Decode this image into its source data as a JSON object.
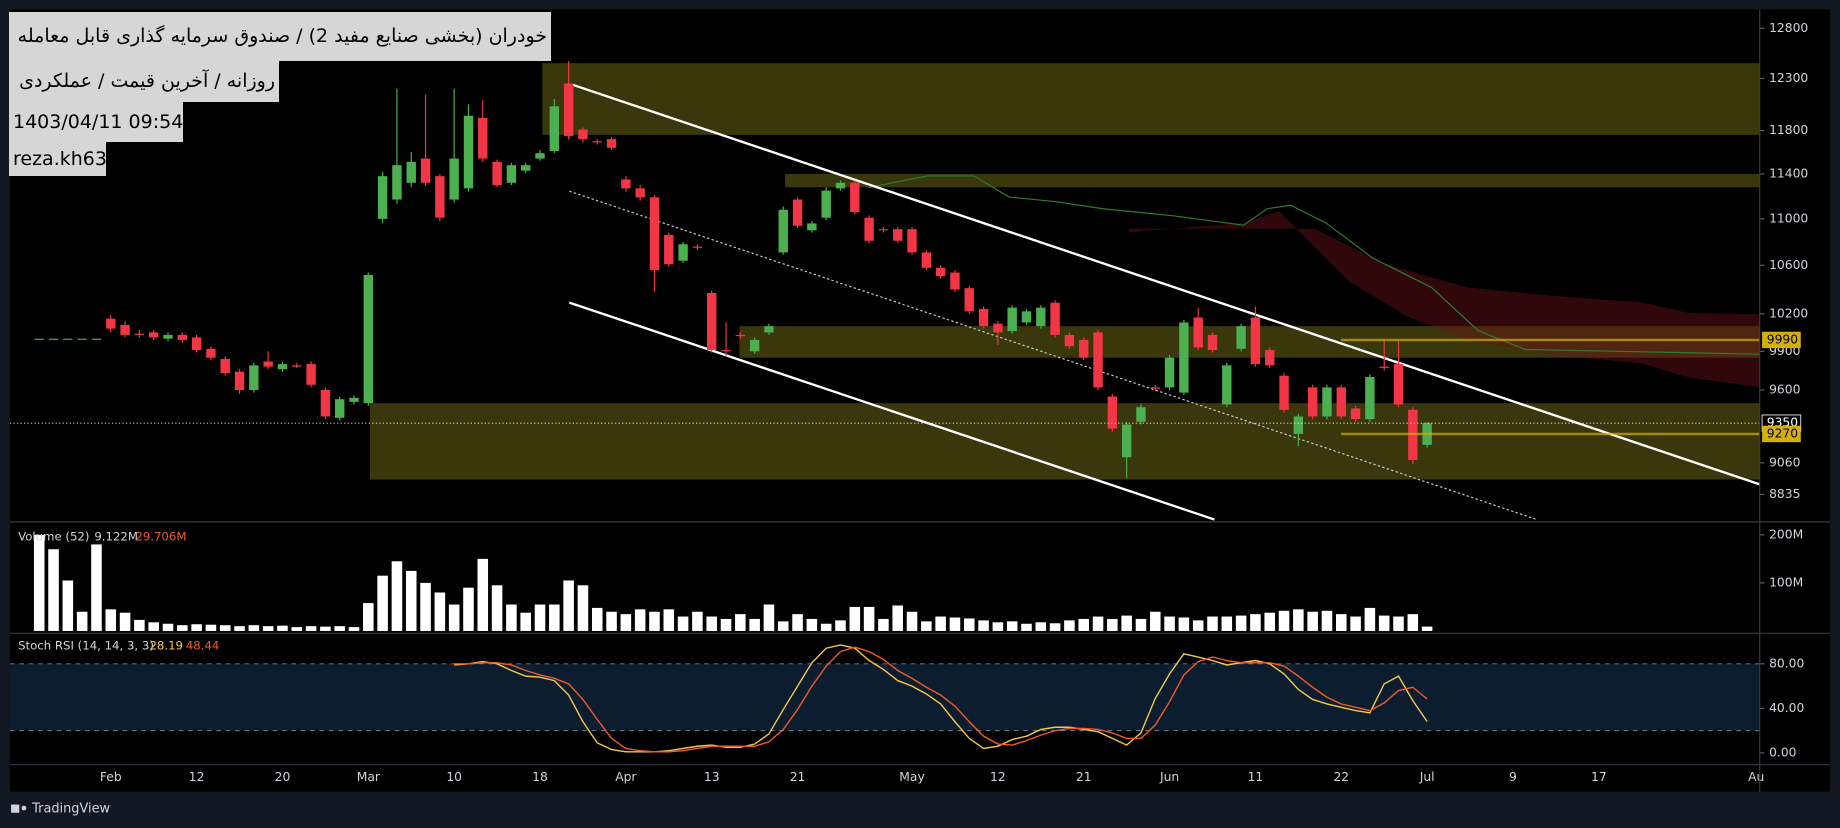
{
  "title": "خودران (بخشی صنایع مفید 2) / صندوق سرمایه گذاری قابل معامله",
  "subtitle": "روزانه / آخرین قیمت / عملکردی",
  "timestamp": "1403/04/11 09:54",
  "author": "reza.kh63",
  "brand": "TradingView",
  "chart_data": [
    {
      "type": "candlestick",
      "categories": [
        null,
        null,
        null,
        null,
        null,
        null,
        null,
        "Feb",
        null,
        null,
        null,
        null,
        null,
        "12",
        null,
        null,
        null,
        null,
        null,
        "20",
        null,
        null,
        null,
        null,
        null,
        "Mar",
        null,
        null,
        null,
        null,
        null,
        "10",
        null,
        null,
        null,
        null,
        null,
        "18",
        null,
        null,
        null,
        null,
        null,
        "Apr",
        null,
        null,
        null,
        null,
        null,
        "13",
        null,
        null,
        null,
        null,
        null,
        "21",
        null,
        null,
        null,
        null,
        null,
        null,
        null,
        "May",
        null,
        null,
        null,
        null,
        null,
        "12",
        null,
        null,
        null,
        null,
        null,
        "21",
        null,
        null,
        null,
        null,
        null,
        "Jun",
        null,
        null,
        null,
        null,
        null,
        "11",
        null,
        null,
        null,
        null,
        null,
        "22",
        null,
        null,
        null,
        null,
        null,
        "Jul",
        null,
        null,
        null,
        null,
        null,
        "9",
        null,
        null,
        null,
        null,
        null,
        "17",
        null,
        null,
        null,
        null,
        null,
        null,
        null,
        null,
        null,
        null,
        "Au"
      ],
      "open": [
        null,
        null,
        10000,
        10000,
        10000,
        10000,
        10000,
        10160,
        10110,
        10040,
        10050,
        10000,
        10030,
        10010,
        9920,
        9840,
        9740,
        9600,
        9820,
        9760,
        9790,
        9800,
        9600,
        9390,
        9510,
        9500,
        11000,
        11170,
        11320,
        11540,
        11380,
        11170,
        11270,
        11920,
        11510,
        11320,
        11430,
        11540,
        11610,
        12250,
        11810,
        11700,
        11720,
        11350,
        11270,
        11190,
        10860,
        10640,
        10760,
        10370,
        9910,
        10030,
        9900,
        10050,
        10710,
        11170,
        10900,
        11010,
        11270,
        11320,
        11010,
        10910,
        10910,
        10910,
        10710,
        10580,
        10540,
        10410,
        10240,
        10120,
        10060,
        10130,
        10100,
        10290,
        10030,
        9990,
        10050,
        9550,
        9100,
        9360,
        9620,
        9620,
        9580,
        10170,
        10030,
        9490,
        9920,
        10170,
        9910,
        9710,
        9270,
        9620,
        9400,
        9620,
        9460,
        9380,
        9780,
        9800,
        9450,
        9190,
        null,
        null,
        null,
        null,
        null,
        null,
        null,
        null,
        null,
        null,
        null,
        null,
        null,
        null,
        null,
        null,
        null,
        null,
        null,
        null,
        null,
        null,
        null
      ],
      "high": [
        null,
        null,
        10000,
        10000,
        10000,
        10000,
        10000,
        10190,
        10140,
        10070,
        10070,
        10050,
        10050,
        10030,
        9940,
        9860,
        9760,
        9810,
        9900,
        9820,
        9810,
        9820,
        9620,
        9550,
        9560,
        10540,
        11420,
        12200,
        11600,
        12140,
        11400,
        12200,
        12050,
        12090,
        11530,
        11500,
        11500,
        11620,
        12100,
        12470,
        11830,
        11720,
        11740,
        11380,
        11300,
        11210,
        10880,
        10800,
        10780,
        10390,
        10130,
        10050,
        10010,
        10120,
        11110,
        11190,
        10980,
        11280,
        11340,
        11340,
        11030,
        10930,
        10930,
        10930,
        10730,
        10600,
        10560,
        10430,
        10260,
        10140,
        10270,
        10240,
        10270,
        10310,
        10050,
        10010,
        10070,
        9570,
        9360,
        9490,
        9640,
        9870,
        10150,
        10250,
        10050,
        9810,
        10120,
        10260,
        9930,
        9730,
        9420,
        9640,
        9640,
        9640,
        9480,
        9720,
        9990,
        9980,
        9470,
        9360,
        null,
        null,
        null,
        null,
        null,
        null,
        null,
        null,
        null,
        null,
        null,
        null,
        null,
        null,
        null,
        null,
        null,
        null,
        null,
        null,
        null,
        null,
        null
      ],
      "low": [
        null,
        null,
        10000,
        10000,
        10000,
        10000,
        10000,
        10050,
        10010,
        10010,
        9990,
        9980,
        9970,
        9890,
        9830,
        9710,
        9570,
        9580,
        9760,
        9740,
        9770,
        9620,
        9380,
        9370,
        9490,
        9480,
        10960,
        11130,
        11280,
        11290,
        10980,
        11140,
        11240,
        11510,
        11280,
        11300,
        11410,
        11520,
        11590,
        11720,
        11690,
        11670,
        11620,
        11240,
        11160,
        10380,
        10590,
        10620,
        10730,
        9890,
        9860,
        10000,
        9880,
        10030,
        10690,
        10920,
        10880,
        10990,
        11250,
        11040,
        10790,
        10880,
        10790,
        10690,
        10560,
        10490,
        10380,
        10200,
        10080,
        9950,
        10040,
        10110,
        10080,
        10010,
        9920,
        9830,
        9600,
        9290,
        8950,
        9340,
        9590,
        9600,
        9560,
        9910,
        9890,
        9470,
        9900,
        9780,
        9770,
        9430,
        9180,
        9380,
        9380,
        9380,
        9360,
        9360,
        9750,
        9470,
        9050,
        9170,
        null,
        null,
        null,
        null,
        null,
        null,
        null,
        null,
        null,
        null,
        null,
        null,
        null,
        null,
        null,
        null,
        null,
        null,
        null,
        null,
        null,
        null,
        null
      ],
      "close": [
        null,
        null,
        10000,
        10000,
        10000,
        10000,
        10000,
        10080,
        10030,
        10030,
        10010,
        10030,
        9990,
        9910,
        9850,
        9730,
        9600,
        9790,
        9780,
        9800,
        9780,
        9640,
        9400,
        9530,
        9540,
        10520,
        11380,
        11480,
        11510,
        11320,
        11010,
        11540,
        11940,
        11540,
        11300,
        11480,
        11480,
        11590,
        12030,
        11750,
        11720,
        11690,
        11640,
        11270,
        11190,
        10560,
        10610,
        10780,
        10750,
        9910,
        9900,
        10020,
        9990,
        10100,
        11080,
        10940,
        10960,
        11250,
        11320,
        11060,
        10810,
        10900,
        10810,
        10710,
        10580,
        10510,
        10400,
        10220,
        10100,
        10050,
        10250,
        10220,
        10250,
        10030,
        9940,
        9850,
        9620,
        9310,
        9340,
        9470,
        9610,
        9850,
        10130,
        9930,
        9910,
        9790,
        10100,
        9800,
        9790,
        9450,
        9400,
        9400,
        9620,
        9400,
        9380,
        9700,
        9770,
        9490,
        9080,
        9350,
        null,
        null,
        null,
        null,
        null,
        null,
        null,
        null,
        null,
        null,
        null,
        null,
        null,
        null,
        null,
        null,
        null,
        null,
        null,
        null,
        null,
        null,
        null
      ],
      "up_color": "#4caf50",
      "down_color": "#f23645",
      "log_scale": true,
      "ylim": [
        8660,
        12970
      ],
      "yticks": [
        12800,
        12300,
        11800,
        11400,
        11000,
        10600,
        10200,
        9900,
        9600,
        9060,
        8835
      ],
      "zone_color": "#d4c62c",
      "zones": [
        {
          "high": 12450,
          "low": 11760
        },
        {
          "high": 11400,
          "low": 11280
        },
        {
          "high": 10100,
          "low": 9850
        },
        {
          "high": 9500,
          "low": 8940
        }
      ],
      "price_lines": [
        {
          "value": 9990,
          "color": "#d4af0a",
          "style": "solid"
        },
        {
          "value": 9350,
          "color": "#ffffff",
          "style": "dotted"
        },
        {
          "value": 9270,
          "color": "#d4af0a",
          "style": "solid"
        }
      ]
    },
    {
      "type": "bar",
      "title": "Volume (52)",
      "legend_values": [
        "9.122M",
        "29.706M"
      ],
      "color": "#ffffff",
      "values": [
        null,
        null,
        200000000.0,
        170000000.0,
        105000000.0,
        40000000.0,
        180000000.0,
        45000000.0,
        38000000.0,
        23000000.0,
        18000000.0,
        15000000.0,
        12000000.0,
        14000000.0,
        13000000.0,
        12000000.0,
        10000000.0,
        12000000.0,
        10000000.0,
        11000000.0,
        8000000.0,
        10000000.0,
        9000000.0,
        10000000.0,
        8000000.0,
        58000000.0,
        115000000.0,
        145000000.0,
        125000000.0,
        100000000.0,
        80000000.0,
        55000000.0,
        90000000.0,
        150000000.0,
        95000000.0,
        55000000.0,
        38000000.0,
        55000000.0,
        55000000.0,
        105000000.0,
        95000000.0,
        48000000.0,
        40000000.0,
        35000000.0,
        45000000.0,
        40000000.0,
        45000000.0,
        30000000.0,
        40000000.0,
        30000000.0,
        25000000.0,
        35000000.0,
        25000000.0,
        55000000.0,
        20000000.0,
        35000000.0,
        25000000.0,
        15000000.0,
        22000000.0,
        50000000.0,
        50000000.0,
        25000000.0,
        53000000.0,
        40000000.0,
        20000000.0,
        30000000.0,
        28000000.0,
        26000000.0,
        22000000.0,
        18000000.0,
        20000000.0,
        15000000.0,
        18000000.0,
        16000000.0,
        22000000.0,
        25000000.0,
        30000000.0,
        25000000.0,
        32000000.0,
        25000000.0,
        40000000.0,
        30000000.0,
        28000000.0,
        22000000.0,
        30000000.0,
        30000000.0,
        32000000.0,
        35000000.0,
        38000000.0,
        42000000.0,
        45000000.0,
        40000000.0,
        42000000.0,
        35000000.0,
        30000000.0,
        48000000.0,
        32000000.0,
        30000000.0,
        35000000.0,
        9122000,
        null,
        null,
        null,
        null,
        null,
        null,
        null,
        null,
        null,
        null,
        null,
        null,
        null,
        null,
        null,
        null,
        null,
        null,
        null,
        null,
        null,
        null,
        null
      ],
      "ylim": [
        0,
        222000000.0
      ],
      "yticks": [
        {
          "value": 200000000.0,
          "label": "200M"
        },
        {
          "value": 100000000.0,
          "label": "100M"
        }
      ]
    },
    {
      "type": "line",
      "title": "Stoch RSI (14, 14, 3, 3)",
      "band": [
        20,
        80
      ],
      "band_color": "#0b1d2e",
      "series": [
        {
          "color": "#f5c84a",
          "values": [
            null,
            null,
            null,
            null,
            null,
            null,
            null,
            null,
            null,
            null,
            null,
            null,
            null,
            null,
            null,
            null,
            null,
            null,
            null,
            null,
            null,
            null,
            null,
            null,
            null,
            null,
            null,
            null,
            null,
            null,
            null,
            79,
            80,
            82,
            80,
            74,
            69,
            68,
            65,
            52,
            28,
            9,
            3,
            1,
            1,
            1,
            2,
            4,
            6,
            7,
            5,
            5,
            8,
            17,
            39,
            60,
            81,
            94,
            97,
            94,
            83,
            75,
            65,
            60,
            53,
            44,
            28,
            13,
            4,
            6,
            12,
            15,
            21,
            23,
            23,
            21,
            19,
            13,
            7,
            18,
            49,
            71,
            89,
            86,
            83,
            79,
            81,
            83,
            80,
            71,
            57,
            48,
            44,
            41,
            38,
            36,
            62,
            69,
            47,
            28.19,
            null,
            null,
            null,
            null,
            null,
            null,
            null,
            null,
            null,
            null,
            null,
            null,
            null,
            null,
            null,
            null,
            null,
            null,
            null,
            null,
            null,
            null,
            null
          ]
        },
        {
          "color": "#ef5a28",
          "values": [
            null,
            null,
            null,
            null,
            null,
            null,
            null,
            null,
            null,
            null,
            null,
            null,
            null,
            null,
            null,
            null,
            null,
            null,
            null,
            null,
            null,
            null,
            null,
            null,
            null,
            null,
            null,
            null,
            null,
            null,
            null,
            80,
            80,
            81,
            81,
            79,
            74,
            70,
            67,
            62,
            48,
            30,
            13,
            4,
            2,
            1,
            1,
            2,
            4,
            6,
            6,
            6,
            6,
            10,
            21,
            39,
            60,
            78,
            91,
            95,
            91,
            84,
            74,
            67,
            59,
            52,
            42,
            28,
            15,
            8,
            7,
            11,
            16,
            20,
            22,
            22,
            21,
            18,
            13,
            13,
            25,
            46,
            70,
            82,
            86,
            83,
            81,
            81,
            81,
            78,
            69,
            59,
            50,
            44,
            41,
            38,
            45,
            56,
            59,
            48.44,
            null,
            null,
            null,
            null,
            null,
            null,
            null,
            null,
            null,
            null,
            null,
            null,
            null,
            null,
            null,
            null,
            null,
            null,
            null,
            null,
            null,
            null,
            null
          ]
        }
      ],
      "ylim": [
        -9.5,
        105.3
      ],
      "yticks": [
        {
          "value": 80,
          "label": "80.00"
        },
        {
          "value": 40,
          "label": "40.00"
        },
        {
          "value": 0,
          "label": "0.00"
        }
      ]
    }
  ]
}
